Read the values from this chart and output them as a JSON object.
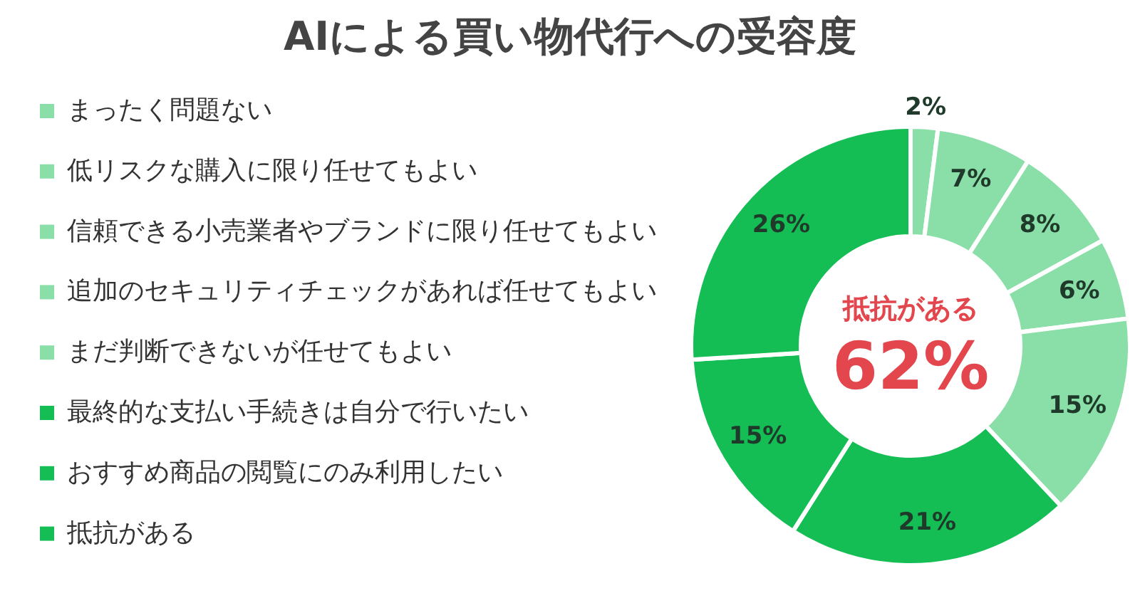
{
  "chart_data": {
    "type": "donut",
    "title": "AIによる買い物代行への受容度",
    "categories": [
      "まったく問題ない",
      "低リスクな購入に限り任せてもよい",
      "信頼できる小売業者やブランドに限り任せてもよい",
      "追加のセキュリティチェックがあれば任せてもよい",
      "まだ判断できないが任せてもよい",
      "最終的な支払い手続きは自分で行いたい",
      "おすすめ商品の閲覧にのみ利用したい",
      "抵抗がある"
    ],
    "values": [
      2,
      7,
      8,
      6,
      15,
      21,
      15,
      26
    ],
    "value_labels": [
      "2%",
      "7%",
      "8%",
      "6%",
      "15%",
      "21%",
      "15%",
      "26%"
    ],
    "colors": [
      "#8adfa9",
      "#8adfa9",
      "#8adfa9",
      "#8adfa9",
      "#8adfa9",
      "#14be55",
      "#14be55",
      "#14be55"
    ],
    "annotations": [
      "抵抗がある",
      "62%"
    ],
    "legend": "left"
  }
}
